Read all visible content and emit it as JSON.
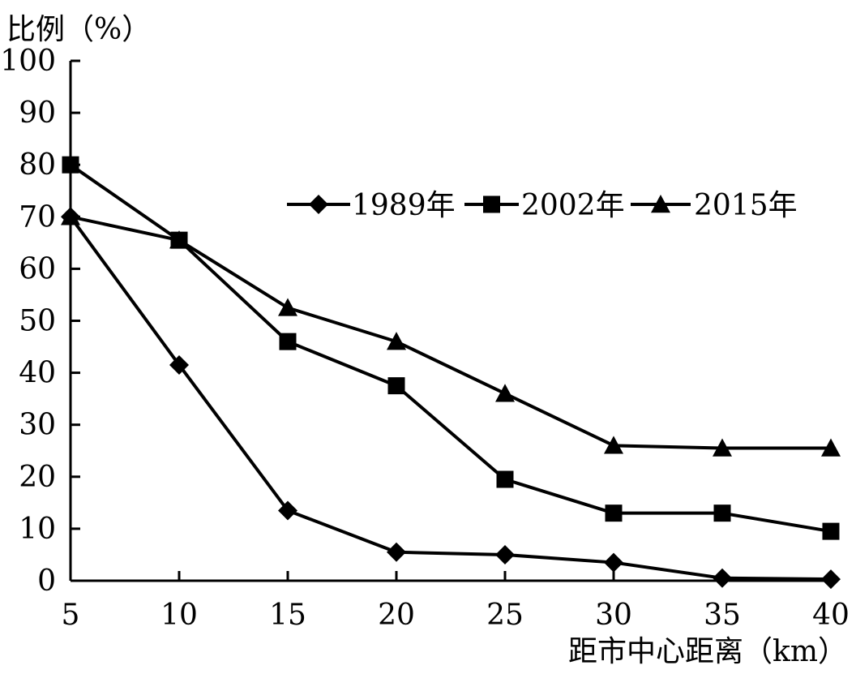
{
  "chart_data": {
    "type": "line",
    "ylabel": "比例（%）",
    "xlabel": "距市中心距离（km）",
    "x": [
      5,
      10,
      15,
      20,
      25,
      30,
      35,
      40
    ],
    "xlim": [
      5,
      40
    ],
    "ylim": [
      0,
      100
    ],
    "yticks": [
      "0",
      "10",
      "20",
      "30",
      "40",
      "50",
      "60",
      "70",
      "80",
      "90",
      "100"
    ],
    "xticks": [
      "5",
      "10",
      "15",
      "20",
      "25",
      "30",
      "35",
      "40"
    ],
    "grid": false,
    "legend_position": "top-right",
    "series": [
      {
        "name": "1989年",
        "marker": "diamond",
        "color": "#000000",
        "values": [
          70,
          41.5,
          13.5,
          5.5,
          5,
          3.5,
          0.5,
          0.3
        ]
      },
      {
        "name": "2002年",
        "marker": "square",
        "color": "#000000",
        "values": [
          80,
          65.5,
          46,
          37.5,
          19.5,
          13,
          13,
          9.5
        ]
      },
      {
        "name": "2015年",
        "marker": "triangle",
        "color": "#000000",
        "values": [
          70,
          65.5,
          52.5,
          46,
          36,
          26,
          25.5,
          25.5
        ]
      }
    ]
  }
}
